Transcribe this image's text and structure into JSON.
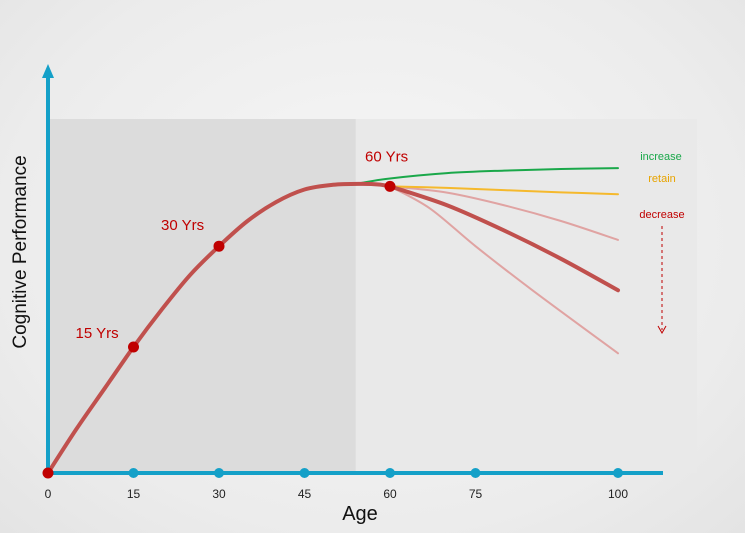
{
  "chart_data": {
    "type": "line",
    "xlabel": "Age",
    "ylabel": "Cognitive Performance",
    "x_ticks": [
      0,
      15,
      30,
      45,
      60,
      75,
      100
    ],
    "xlim": [
      0,
      100
    ],
    "ylim": [
      0,
      100
    ],
    "shaded_region": [
      0,
      54
    ],
    "main_curve": {
      "x": [
        0,
        5,
        10,
        15,
        20,
        25,
        30,
        35,
        40,
        45,
        50,
        55,
        58,
        60
      ],
      "y": [
        0,
        14,
        27,
        40,
        52,
        63,
        72,
        80,
        86,
        90,
        91.5,
        91.8,
        91.6,
        91
      ]
    },
    "milestones": [
      {
        "x": 0,
        "y": 0,
        "label": ""
      },
      {
        "x": 15,
        "y": 40,
        "label": "15 Yrs"
      },
      {
        "x": 30,
        "y": 72,
        "label": "30 Yrs"
      },
      {
        "x": 60,
        "y": 91,
        "label": "60 Yrs"
      }
    ],
    "branches": [
      {
        "label": "increase",
        "color": "#1aa84a",
        "x": [
          54,
          60,
          70,
          80,
          90,
          100
        ],
        "y": [
          91.8,
          93.5,
          95.2,
          96.0,
          96.5,
          96.8
        ],
        "show_label": true
      },
      {
        "label": "retain",
        "color": "#f5b92d",
        "x": [
          60,
          70,
          80,
          90,
          100
        ],
        "y": [
          91,
          90.5,
          89.8,
          89.1,
          88.5
        ],
        "show_label": true
      },
      {
        "label": "decrease",
        "color": "#c0504d",
        "x": [
          60,
          70,
          80,
          90,
          100
        ],
        "y": [
          91,
          85,
          77,
          68,
          58
        ],
        "show_label": true
      },
      {
        "label": "",
        "color": "#e0a3a2",
        "x": [
          60,
          70,
          80,
          90,
          100
        ],
        "y": [
          91,
          89,
          85,
          80,
          74
        ],
        "show_label": false
      },
      {
        "label": "",
        "color": "#e0a3a2",
        "x": [
          60,
          67,
          75,
          85,
          100
        ],
        "y": [
          91,
          84,
          72,
          58,
          38
        ],
        "show_label": false
      }
    ],
    "decrease_arrow": true
  },
  "colors": {
    "axis": "#14a0c8",
    "curve": "#c0504d",
    "milestone_dot": "#c00000",
    "milestone_label": "#c00000",
    "shade": "#dcdcdc",
    "right_panel": "#e9e9e9",
    "decrease_label": "#c00000"
  }
}
